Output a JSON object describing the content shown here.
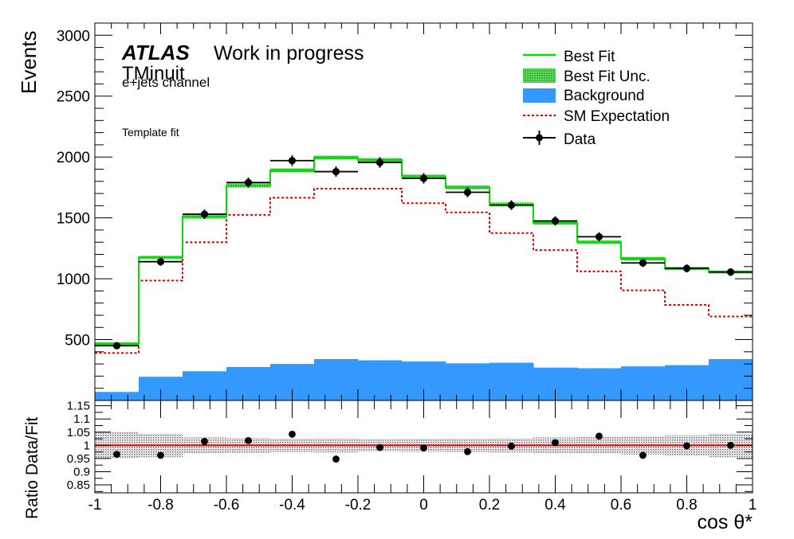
{
  "chart_data": [
    {
      "type": "histogram",
      "xlabel": "cos θ*",
      "ylabel": "Events",
      "xlim": [
        -1,
        1
      ],
      "ylim": [
        0,
        3100
      ],
      "yticks": [
        500,
        1000,
        1500,
        2000,
        2500,
        3000
      ],
      "bin_edges": [
        -1,
        -0.8667,
        -0.7333,
        -0.6,
        -0.4667,
        -0.3333,
        -0.2,
        -0.0667,
        0.0667,
        0.2,
        0.3333,
        0.4667,
        0.6,
        0.7333,
        0.8667,
        1
      ],
      "annotations": {
        "atlas": "ATLAS",
        "status": "Work in progress",
        "minuit": "TMinuit",
        "channel": "e+jets channel",
        "method": "Template fit"
      },
      "legend": {
        "placement": "top-right",
        "entries": [
          "Best Fit",
          "Best Fit Unc.",
          "Background",
          "SM Expectation",
          "Data"
        ]
      },
      "colors": {
        "best_fit": "#00e000",
        "best_fit_unc": "#44d044",
        "background": "#3399ff",
        "sm": "#e00000",
        "data": "#000000"
      },
      "series": [
        {
          "name": "Best Fit",
          "values": [
            465,
            1175,
            1510,
            1765,
            1890,
            1995,
            1975,
            1840,
            1750,
            1610,
            1460,
            1300,
            1165,
            1085,
            1055
          ]
        },
        {
          "name": "Best Fit Unc.",
          "values": [
            12,
            14,
            16,
            16,
            16,
            16,
            16,
            16,
            16,
            16,
            16,
            14,
            14,
            12,
            12
          ]
        },
        {
          "name": "Background",
          "values": [
            70,
            195,
            240,
            275,
            300,
            340,
            330,
            320,
            305,
            310,
            270,
            265,
            280,
            290,
            340
          ]
        },
        {
          "name": "SM Expectation",
          "values": [
            390,
            985,
            1300,
            1525,
            1665,
            1740,
            1740,
            1620,
            1545,
            1375,
            1235,
            1060,
            905,
            785,
            690
          ]
        },
        {
          "name": "Data",
          "values": [
            450,
            1140,
            1530,
            1790,
            1970,
            1880,
            1955,
            1825,
            1710,
            1605,
            1475,
            1345,
            1130,
            1085,
            1055
          ],
          "errors": [
            21,
            34,
            39,
            42,
            44,
            43,
            44,
            43,
            41,
            40,
            38,
            37,
            34,
            33,
            32
          ]
        }
      ]
    },
    {
      "type": "ratio",
      "xlabel": "cos θ*",
      "ylabel": "Ratio Data/Fit",
      "xlim": [
        -1,
        1
      ],
      "ylim": [
        0.82,
        1.17
      ],
      "yticks": [
        0.85,
        0.9,
        0.95,
        1,
        1.05,
        1.1,
        1.15
      ],
      "yticklabels": [
        "0.85",
        "0.9",
        "0.95",
        "1",
        "1.05",
        "1.1",
        "1.15"
      ],
      "xticks": [
        -1,
        -0.8,
        -0.6,
        -0.4,
        -0.2,
        0,
        0.2,
        0.4,
        0.6,
        0.8,
        1
      ],
      "xticklabels": [
        "-1",
        "-0.8",
        "-0.6",
        "-0.4",
        "-0.2",
        "0",
        "0.2",
        "0.4",
        "0.6",
        "0.8",
        "1"
      ],
      "values": [
        0.966,
        0.962,
        1.015,
        1.018,
        1.042,
        0.948,
        0.992,
        0.99,
        0.976,
        0.997,
        1.01,
        1.035,
        0.962,
        0.998,
        1.0
      ],
      "band": [
        0.05,
        0.045,
        0.03,
        0.028,
        0.026,
        0.027,
        0.024,
        0.025,
        0.026,
        0.027,
        0.03,
        0.032,
        0.035,
        0.038,
        0.045
      ],
      "reference_line": 1,
      "colors": {
        "line": "#e00000",
        "band": "#888888",
        "points": "#000000"
      }
    }
  ]
}
